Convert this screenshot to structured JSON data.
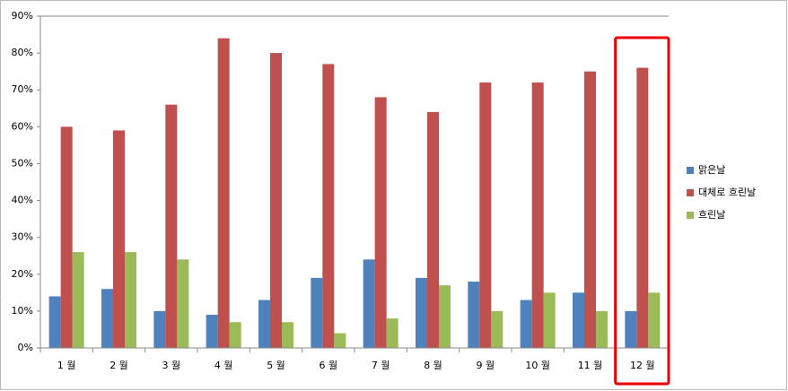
{
  "chart_data": {
    "type": "bar",
    "categories": [
      "1 월",
      "2 월",
      "3 월",
      "4 월",
      "5 월",
      "6 월",
      "7 월",
      "8 월",
      "9 월",
      "10 월",
      "11 월",
      "12 월"
    ],
    "series": [
      {
        "name": "맑은날",
        "color": "#4f81bd",
        "values": [
          14,
          16,
          10,
          9,
          13,
          19,
          24,
          19,
          18,
          13,
          15,
          10
        ]
      },
      {
        "name": "대체로 흐린날",
        "color": "#c0504d",
        "values": [
          60,
          59,
          66,
          84,
          80,
          77,
          68,
          64,
          72,
          72,
          75,
          76
        ]
      },
      {
        "name": "흐린날",
        "color": "#9bbb59",
        "values": [
          26,
          26,
          24,
          7,
          7,
          4,
          8,
          17,
          10,
          15,
          10,
          15
        ]
      }
    ],
    "ylim": [
      0,
      90
    ],
    "yticks": [
      {
        "value": 0,
        "label": "0%"
      },
      {
        "value": 10,
        "label": "10%"
      },
      {
        "value": 20,
        "label": "20%"
      },
      {
        "value": 30,
        "label": "30%"
      },
      {
        "value": 40,
        "label": "40%"
      },
      {
        "value": 50,
        "label": "50%"
      },
      {
        "value": 60,
        "label": "60%"
      },
      {
        "value": 70,
        "label": "70%"
      },
      {
        "value": 80,
        "label": "80%"
      },
      {
        "value": 90,
        "label": "90%"
      }
    ],
    "grid": false,
    "legend": "right"
  }
}
